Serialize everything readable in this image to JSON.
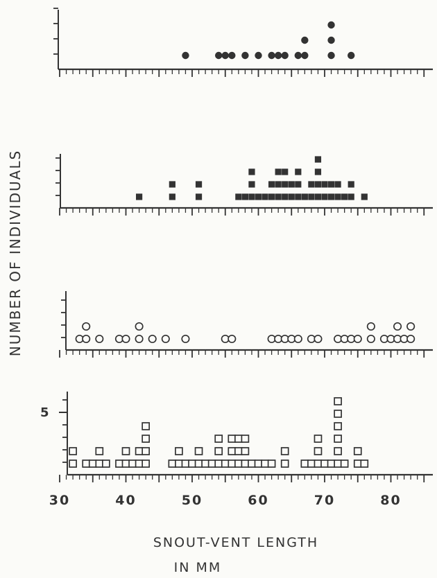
{
  "chart_data": {
    "type": "scatter",
    "subtype": "dot-frequency-histogram",
    "xlabel": "SNOUT-VENT LENGTH",
    "xlabel_unit": "IN MM",
    "ylabel": "NUMBER OF INDIVIDUALS",
    "x_tick_labels": [
      "30",
      "40",
      "50",
      "60",
      "70",
      "80"
    ],
    "y_tick_label": "5",
    "xlim": [
      30,
      85
    ],
    "colors": {
      "ink": "#333333",
      "paper": "#fbfbf8"
    },
    "panels": [
      {
        "marker": "filled-circle",
        "ylim": [
          0,
          4
        ],
        "counts": [
          {
            "x": 49,
            "n": 1
          },
          {
            "x": 54,
            "n": 1
          },
          {
            "x": 55,
            "n": 1
          },
          {
            "x": 56,
            "n": 1
          },
          {
            "x": 58,
            "n": 1
          },
          {
            "x": 60,
            "n": 1
          },
          {
            "x": 62,
            "n": 1
          },
          {
            "x": 63,
            "n": 1
          },
          {
            "x": 64,
            "n": 1
          },
          {
            "x": 66,
            "n": 1
          },
          {
            "x": 67,
            "n": 2
          },
          {
            "x": 71,
            "n": 3
          },
          {
            "x": 74,
            "n": 1
          }
        ]
      },
      {
        "marker": "filled-square",
        "ylim": [
          0,
          4
        ],
        "counts": [
          {
            "x": 42,
            "n": 1
          },
          {
            "x": 47,
            "n": 2
          },
          {
            "x": 51,
            "n": 2
          },
          {
            "x": 57,
            "n": 1
          },
          {
            "x": 58,
            "n": 1
          },
          {
            "x": 59,
            "n": 3
          },
          {
            "x": 60,
            "n": 1
          },
          {
            "x": 61,
            "n": 1
          },
          {
            "x": 62,
            "n": 2
          },
          {
            "x": 63,
            "n": 3
          },
          {
            "x": 64,
            "n": 3
          },
          {
            "x": 65,
            "n": 2
          },
          {
            "x": 66,
            "n": 3
          },
          {
            "x": 67,
            "n": 1
          },
          {
            "x": 68,
            "n": 2
          },
          {
            "x": 69,
            "n": 4
          },
          {
            "x": 70,
            "n": 2
          },
          {
            "x": 71,
            "n": 2
          },
          {
            "x": 72,
            "n": 2
          },
          {
            "x": 73,
            "n": 1
          },
          {
            "x": 74,
            "n": 2
          },
          {
            "x": 76,
            "n": 1
          }
        ]
      },
      {
        "marker": "open-circle",
        "ylim": [
          0,
          4
        ],
        "counts": [
          {
            "x": 33,
            "n": 1
          },
          {
            "x": 34,
            "n": 2
          },
          {
            "x": 36,
            "n": 1
          },
          {
            "x": 39,
            "n": 1
          },
          {
            "x": 40,
            "n": 1
          },
          {
            "x": 42,
            "n": 2
          },
          {
            "x": 44,
            "n": 1
          },
          {
            "x": 46,
            "n": 1
          },
          {
            "x": 49,
            "n": 1
          },
          {
            "x": 55,
            "n": 1
          },
          {
            "x": 56,
            "n": 1
          },
          {
            "x": 62,
            "n": 1
          },
          {
            "x": 63,
            "n": 1
          },
          {
            "x": 64,
            "n": 1
          },
          {
            "x": 65,
            "n": 1
          },
          {
            "x": 66,
            "n": 1
          },
          {
            "x": 68,
            "n": 1
          },
          {
            "x": 69,
            "n": 1
          },
          {
            "x": 72,
            "n": 1
          },
          {
            "x": 73,
            "n": 1
          },
          {
            "x": 74,
            "n": 1
          },
          {
            "x": 75,
            "n": 1
          },
          {
            "x": 77,
            "n": 2
          },
          {
            "x": 79,
            "n": 1
          },
          {
            "x": 80,
            "n": 1
          },
          {
            "x": 81,
            "n": 2
          },
          {
            "x": 82,
            "n": 1
          },
          {
            "x": 83,
            "n": 2
          }
        ]
      },
      {
        "marker": "open-square",
        "ylim": [
          0,
          6.5
        ],
        "counts": [
          {
            "x": 32,
            "n": 2
          },
          {
            "x": 34,
            "n": 1
          },
          {
            "x": 35,
            "n": 1
          },
          {
            "x": 36,
            "n": 2
          },
          {
            "x": 37,
            "n": 1
          },
          {
            "x": 39,
            "n": 1
          },
          {
            "x": 40,
            "n": 2
          },
          {
            "x": 41,
            "n": 1
          },
          {
            "x": 42,
            "n": 2
          },
          {
            "x": 43,
            "n": 4
          },
          {
            "x": 47,
            "n": 1
          },
          {
            "x": 48,
            "n": 2
          },
          {
            "x": 49,
            "n": 1
          },
          {
            "x": 50,
            "n": 1
          },
          {
            "x": 51,
            "n": 2
          },
          {
            "x": 52,
            "n": 1
          },
          {
            "x": 53,
            "n": 1
          },
          {
            "x": 54,
            "n": 3
          },
          {
            "x": 55,
            "n": 1
          },
          {
            "x": 56,
            "n": 3
          },
          {
            "x": 57,
            "n": 3
          },
          {
            "x": 58,
            "n": 3
          },
          {
            "x": 59,
            "n": 1
          },
          {
            "x": 60,
            "n": 1
          },
          {
            "x": 61,
            "n": 1
          },
          {
            "x": 62,
            "n": 1
          },
          {
            "x": 64,
            "n": 2
          },
          {
            "x": 67,
            "n": 1
          },
          {
            "x": 68,
            "n": 1
          },
          {
            "x": 69,
            "n": 3
          },
          {
            "x": 70,
            "n": 1
          },
          {
            "x": 71,
            "n": 1
          },
          {
            "x": 72,
            "n": 6
          },
          {
            "x": 73,
            "n": 1
          },
          {
            "x": 75,
            "n": 2
          },
          {
            "x": 76,
            "n": 1
          }
        ]
      }
    ]
  }
}
